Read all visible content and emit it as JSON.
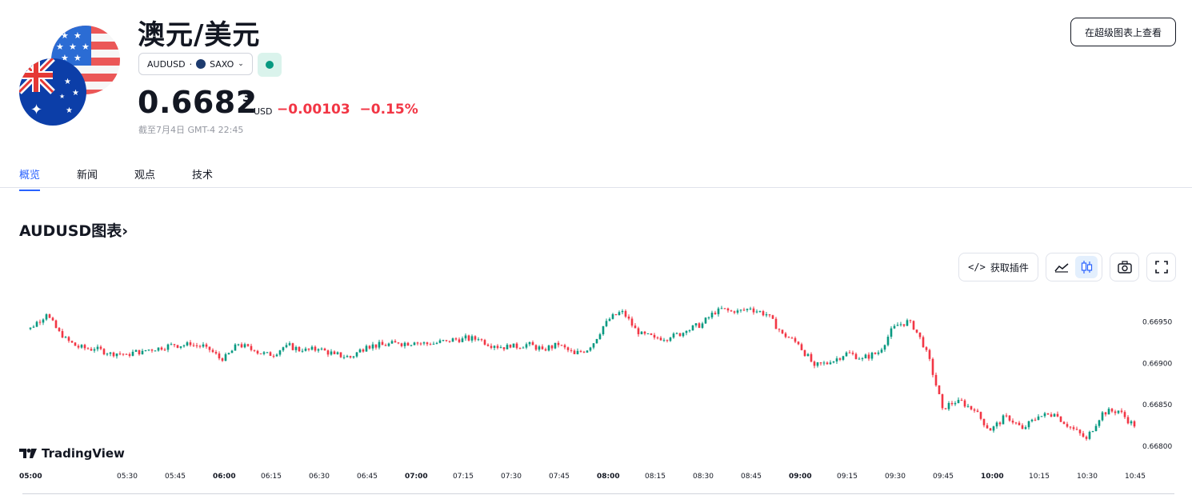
{
  "header": {
    "title": "澳元/美元",
    "symbol": "AUDUSD",
    "exchange": "SAXO",
    "price_main": "0.6682",
    "price_sup": "3",
    "currency": "USD",
    "change": "−0.00103",
    "change_pct": "−0.15%",
    "as_of": "截至7月4日 GMT-4 22:45",
    "supercharts_label": "在超级图表上查看",
    "status_color": "#089981"
  },
  "tabs": [
    {
      "label": "概览",
      "active": true
    },
    {
      "label": "新闻",
      "active": false
    },
    {
      "label": "观点",
      "active": false
    },
    {
      "label": "技术",
      "active": false
    }
  ],
  "section": {
    "title": "AUDUSD图表",
    "chevron": "›"
  },
  "toolbar": {
    "embed_label": "获取插件",
    "icons": [
      "embed-code-icon",
      "line-chart-icon",
      "candlestick-icon",
      "camera-icon",
      "fullscreen-icon"
    ]
  },
  "branding": {
    "tv_label": "TradingView"
  },
  "colors": {
    "up": "#089981",
    "down": "#f23645",
    "accent": "#2962ff"
  },
  "chart_data": {
    "type": "candlestick",
    "x_labels": [
      "05:00",
      "05:30",
      "05:45",
      "06:00",
      "06:15",
      "06:30",
      "06:45",
      "07:00",
      "07:15",
      "07:30",
      "07:45",
      "08:00",
      "08:15",
      "08:30",
      "08:45",
      "09:00",
      "09:15",
      "09:30",
      "09:45",
      "10:00",
      "10:15",
      "10:30",
      "10:45"
    ],
    "bold_labels": [
      "05:00",
      "06:00",
      "07:00",
      "08:00",
      "09:00",
      "10:00"
    ],
    "y_ticks": [
      "0.66950",
      "0.66900",
      "0.66850",
      "0.66800"
    ],
    "ylim": [
      0.66778,
      0.66985
    ],
    "series": [
      {
        "t": "05:00",
        "close": 0.66942
      },
      {
        "t": "05:05",
        "close": 0.66958
      },
      {
        "t": "05:10",
        "close": 0.6693
      },
      {
        "t": "05:15",
        "close": 0.66918
      },
      {
        "t": "05:20",
        "close": 0.66916
      },
      {
        "t": "05:25",
        "close": 0.66912
      },
      {
        "t": "05:30",
        "close": 0.6691
      },
      {
        "t": "05:35",
        "close": 0.66914
      },
      {
        "t": "05:40",
        "close": 0.66918
      },
      {
        "t": "05:45",
        "close": 0.66921
      },
      {
        "t": "05:50",
        "close": 0.66921
      },
      {
        "t": "05:55",
        "close": 0.66919
      },
      {
        "t": "06:00",
        "close": 0.66902
      },
      {
        "t": "06:05",
        "close": 0.66922
      },
      {
        "t": "06:10",
        "close": 0.66914
      },
      {
        "t": "06:15",
        "close": 0.66908
      },
      {
        "t": "06:20",
        "close": 0.66921
      },
      {
        "t": "06:25",
        "close": 0.66914
      },
      {
        "t": "06:30",
        "close": 0.66916
      },
      {
        "t": "06:35",
        "close": 0.6691
      },
      {
        "t": "06:40",
        "close": 0.66906
      },
      {
        "t": "06:45",
        "close": 0.6692
      },
      {
        "t": "06:50",
        "close": 0.66921
      },
      {
        "t": "06:55",
        "close": 0.66923
      },
      {
        "t": "07:00",
        "close": 0.66924
      },
      {
        "t": "07:05",
        "close": 0.66922
      },
      {
        "t": "07:10",
        "close": 0.66926
      },
      {
        "t": "07:15",
        "close": 0.66929
      },
      {
        "t": "07:20",
        "close": 0.66928
      },
      {
        "t": "07:25",
        "close": 0.6692
      },
      {
        "t": "07:30",
        "close": 0.66918
      },
      {
        "t": "07:35",
        "close": 0.66922
      },
      {
        "t": "07:40",
        "close": 0.66916
      },
      {
        "t": "07:45",
        "close": 0.66921
      },
      {
        "t": "07:50",
        "close": 0.6691
      },
      {
        "t": "07:55",
        "close": 0.66918
      },
      {
        "t": "08:00",
        "close": 0.6695
      },
      {
        "t": "08:05",
        "close": 0.66962
      },
      {
        "t": "08:10",
        "close": 0.66934
      },
      {
        "t": "08:15",
        "close": 0.6693
      },
      {
        "t": "08:20",
        "close": 0.6693
      },
      {
        "t": "08:25",
        "close": 0.66938
      },
      {
        "t": "08:30",
        "close": 0.66947
      },
      {
        "t": "08:35",
        "close": 0.66965
      },
      {
        "t": "08:40",
        "close": 0.6696
      },
      {
        "t": "08:45",
        "close": 0.66965
      },
      {
        "t": "08:50",
        "close": 0.66958
      },
      {
        "t": "08:55",
        "close": 0.66935
      },
      {
        "t": "09:00",
        "close": 0.66922
      },
      {
        "t": "09:05",
        "close": 0.66896
      },
      {
        "t": "09:10",
        "close": 0.669
      },
      {
        "t": "09:15",
        "close": 0.66912
      },
      {
        "t": "09:20",
        "close": 0.66905
      },
      {
        "t": "09:25",
        "close": 0.66912
      },
      {
        "t": "09:30",
        "close": 0.66944
      },
      {
        "t": "09:35",
        "close": 0.6695
      },
      {
        "t": "09:40",
        "close": 0.66915
      },
      {
        "t": "09:45",
        "close": 0.66845
      },
      {
        "t": "09:50",
        "close": 0.66855
      },
      {
        "t": "09:55",
        "close": 0.66842
      },
      {
        "t": "10:00",
        "close": 0.66818
      },
      {
        "t": "10:05",
        "close": 0.66836
      },
      {
        "t": "10:10",
        "close": 0.6682
      },
      {
        "t": "10:15",
        "close": 0.66835
      },
      {
        "t": "10:20",
        "close": 0.66838
      },
      {
        "t": "10:25",
        "close": 0.66822
      },
      {
        "t": "10:30",
        "close": 0.66808
      },
      {
        "t": "10:35",
        "close": 0.6684
      },
      {
        "t": "10:40",
        "close": 0.66842
      },
      {
        "t": "10:45",
        "close": 0.66823
      }
    ],
    "grid": false,
    "legend": "none"
  }
}
